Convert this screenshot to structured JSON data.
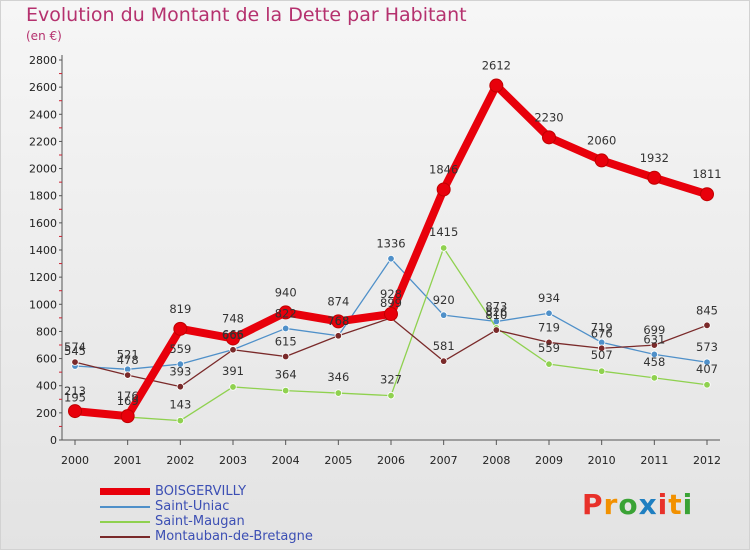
{
  "header": {
    "title": "Evolution du Montant de la Dette par Habitant",
    "unit": "(en €)"
  },
  "brand": {
    "text": "Proxiti",
    "colors": [
      "#e8312a",
      "#f29100",
      "#3aa335",
      "#1f7fc1",
      "#e8312a",
      "#f29100",
      "#3aa335"
    ]
  },
  "chart_data": {
    "type": "line",
    "title": "Evolution du Montant de la Dette par Habitant",
    "subtitle": "(en €)",
    "x": [
      "2000",
      "2001",
      "2002",
      "2003",
      "2004",
      "2005",
      "2006",
      "2007",
      "2008",
      "2009",
      "2010",
      "2011",
      "2012"
    ],
    "ylim": [
      0,
      2800
    ],
    "yticks": [
      0,
      200,
      400,
      600,
      800,
      1000,
      1200,
      1400,
      1600,
      1800,
      2000,
      2200,
      2400,
      2600,
      2800
    ],
    "grid": false,
    "legend": "bottom-left",
    "series": [
      {
        "name": "BOISGERVILLY",
        "color": "#e8000b",
        "values": [
          213,
          176,
          819,
          748,
          940,
          874,
          928,
          1846,
          2612,
          2230,
          2060,
          1932,
          1811
        ]
      },
      {
        "name": "Saint-Uniac",
        "color": "#4f90c9",
        "values": [
          545,
          521,
          559,
          666,
          822,
          768,
          1336,
          920,
          873,
          934,
          719,
          631,
          573
        ]
      },
      {
        "name": "Saint-Maugan",
        "color": "#8fd14f",
        "values": [
          195,
          169,
          143,
          391,
          364,
          346,
          327,
          1415,
          826,
          559,
          507,
          458,
          407
        ]
      },
      {
        "name": "Montauban-de-Bretagne",
        "color": "#7a2a2a",
        "values": [
          574,
          478,
          393,
          665,
          615,
          768,
          899,
          581,
          810,
          719,
          676,
          699,
          845
        ]
      }
    ]
  }
}
